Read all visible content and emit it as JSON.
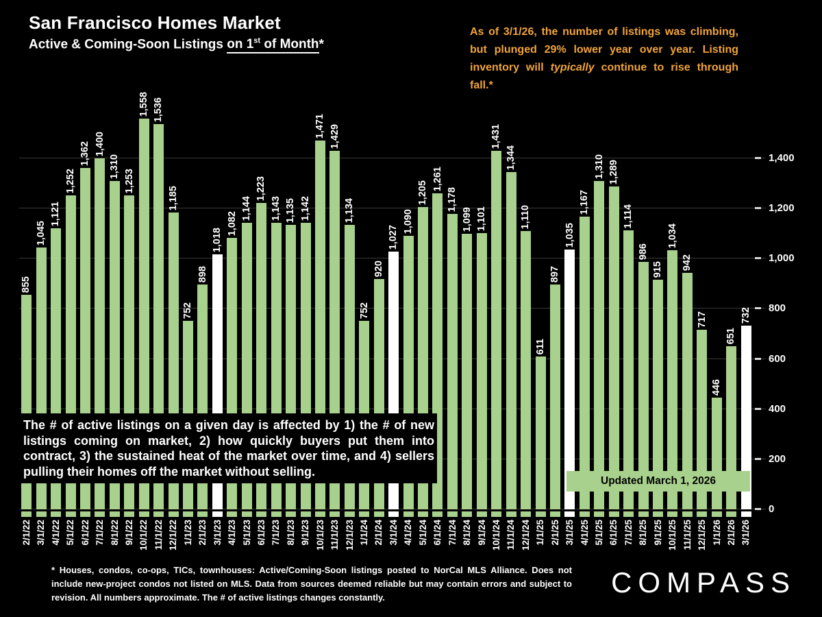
{
  "header": {
    "title": "San Francisco Homes Market",
    "subtitle_prefix": "Active & Coming-Soon Listings ",
    "subtitle_underline_pre": "on 1",
    "subtitle_superscript": "st",
    "subtitle_underline_post": " of Month",
    "subtitle_suffix": "*"
  },
  "annotation": {
    "text_before_italic": "As of 3/1/26, the number of listings was climbing, but plunged 29% lower year over year. Listing inventory will ",
    "italic_word": "typically",
    "text_after_italic": " continue to rise through fall.*"
  },
  "info_box": "The # of active listings on a given day is affected by 1) the # of new listings coming on market, 2) how quickly buyers put them into contract, 3) the sustained heat of the market over time, and 4) sellers pulling their homes off the market without selling.",
  "updated_label": "Updated March 1, 2026",
  "footnote": "* Houses, condos, co-ops, TICs, townhouses: Active/Coming-Soon listings posted to NorCal MLS Alliance. Does not include new-project condos not listed on MLS. Data from sources deemed reliable but may contain errors and subject to revision. All numbers approximate. The # of active listings changes constantly.",
  "logo": "COMPASS",
  "colors": {
    "background": "#000000",
    "bar": "#A9D18E",
    "bar_highlight": "#FFFFFF",
    "annotation_text": "#F2A43A",
    "axis_text": "#FFFFFF",
    "updated_box": "#A9D18E"
  },
  "chart_data": {
    "type": "bar",
    "title": "San Francisco Homes Market",
    "subtitle": "Active & Coming-Soon Listings on 1st of Month*",
    "xlabel": "",
    "ylabel": "",
    "grid": "horizontal",
    "legend": "none",
    "ylim": [
      0,
      1600
    ],
    "y_ticks": [
      0,
      200,
      400,
      600,
      800,
      1000,
      1200,
      1400
    ],
    "categories": [
      "2/1/22",
      "3/1/22",
      "4/1/22",
      "5/1/22",
      "6/1/22",
      "7/1/22",
      "8/1/22",
      "9/1/22",
      "10/1/22",
      "11/1/22",
      "12/1/22",
      "1/1/23",
      "2/1/23",
      "3/1/23",
      "4/1/23",
      "5/1/23",
      "6/1/23",
      "7/1/23",
      "8/1/23",
      "9/1/23",
      "10/1/23",
      "11/1/23",
      "12/1/23",
      "1/1/24",
      "2/1/24",
      "3/1/24",
      "4/1/24",
      "5/1/24",
      "6/1/24",
      "7/1/24",
      "8/1/24",
      "9/1/24",
      "10/1/24",
      "11/1/24",
      "12/1/24",
      "1/1/25",
      "2/1/25",
      "3/1/25",
      "4/1/25",
      "5/1/25",
      "6/1/25",
      "7/1/25",
      "8/1/25",
      "9/1/25",
      "10/1/25",
      "11/1/25",
      "12/1/25",
      "1/1/26",
      "2/1/26",
      "3/1/26"
    ],
    "values": [
      855,
      1045,
      1121,
      1252,
      1362,
      1400,
      1310,
      1253,
      1558,
      1536,
      1185,
      752,
      898,
      1018,
      1082,
      1144,
      1223,
      1143,
      1135,
      1142,
      1471,
      1429,
      1134,
      752,
      920,
      1027,
      1090,
      1205,
      1261,
      1178,
      1099,
      1101,
      1431,
      1344,
      1110,
      611,
      897,
      1035,
      1167,
      1310,
      1289,
      1114,
      986,
      915,
      1034,
      942,
      717,
      446,
      651,
      732
    ],
    "highlighted_categories": [
      "3/1/23",
      "3/1/24",
      "3/1/25",
      "3/1/26"
    ]
  }
}
